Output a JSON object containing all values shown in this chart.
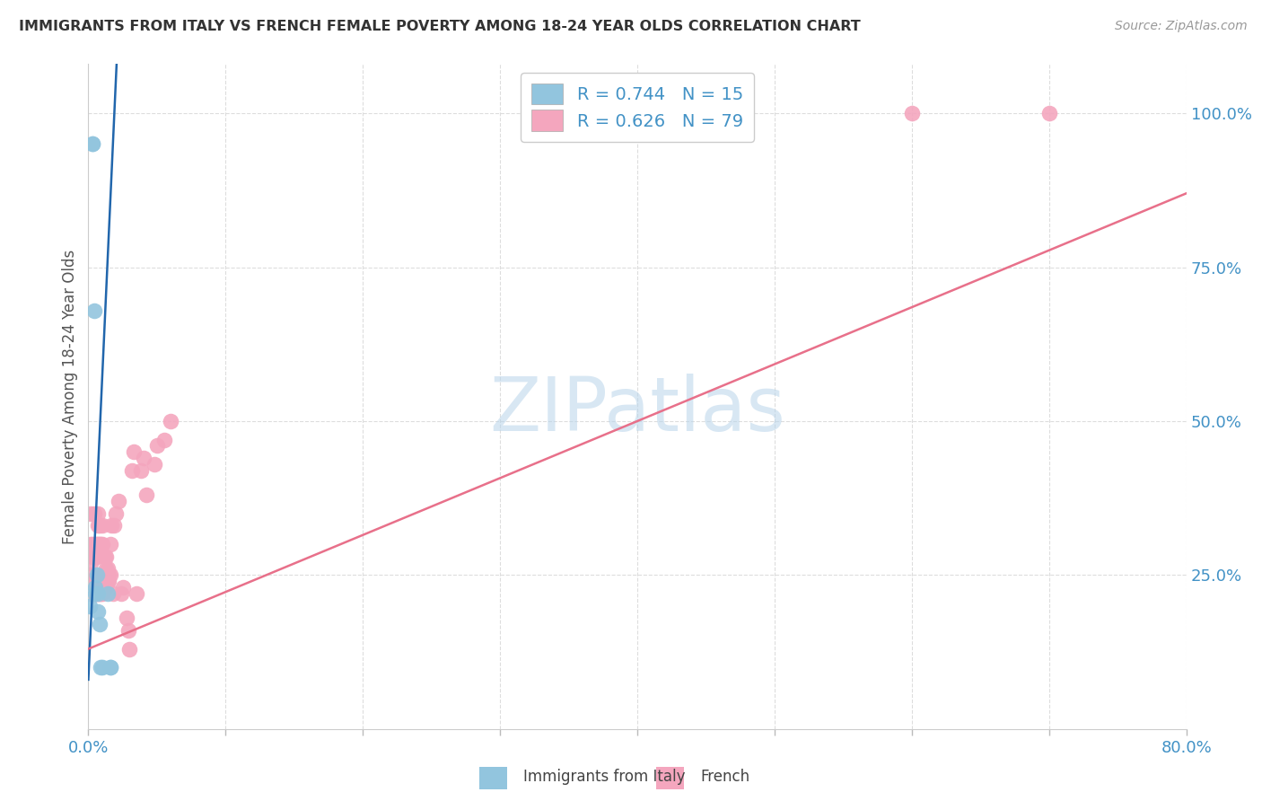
{
  "title": "IMMIGRANTS FROM ITALY VS FRENCH FEMALE POVERTY AMONG 18-24 YEAR OLDS CORRELATION CHART",
  "source": "Source: ZipAtlas.com",
  "ylabel": "Female Poverty Among 18-24 Year Olds",
  "watermark": "ZIPatlas",
  "legend_italy": "Immigrants from Italy",
  "legend_french": "French",
  "R_italy": "0.744",
  "N_italy": "15",
  "R_french": "0.626",
  "N_french": "79",
  "color_italy": "#92c5de",
  "color_french": "#f4a6be",
  "color_italy_line": "#2166ac",
  "color_french_line": "#e8708a",
  "color_axis_labels": "#4292c6",
  "color_title": "#333333",
  "color_source": "#999999",
  "color_legend_text": "#333333",
  "color_grid": "#dddddd",
  "italy_x": [
    0.001,
    0.003,
    0.003,
    0.004,
    0.005,
    0.005,
    0.006,
    0.007,
    0.007,
    0.008,
    0.009,
    0.01,
    0.014,
    0.016,
    0.016
  ],
  "italy_y": [
    0.2,
    0.95,
    0.95,
    0.68,
    0.23,
    0.22,
    0.25,
    0.22,
    0.19,
    0.17,
    0.1,
    0.1,
    0.22,
    0.1,
    0.1
  ],
  "french_x": [
    0.001,
    0.001,
    0.001,
    0.002,
    0.002,
    0.002,
    0.002,
    0.003,
    0.003,
    0.003,
    0.003,
    0.003,
    0.004,
    0.004,
    0.004,
    0.004,
    0.005,
    0.005,
    0.005,
    0.005,
    0.005,
    0.006,
    0.006,
    0.006,
    0.006,
    0.006,
    0.007,
    0.007,
    0.007,
    0.007,
    0.007,
    0.008,
    0.008,
    0.008,
    0.008,
    0.009,
    0.009,
    0.009,
    0.01,
    0.01,
    0.01,
    0.01,
    0.011,
    0.011,
    0.011,
    0.012,
    0.012,
    0.012,
    0.013,
    0.013,
    0.013,
    0.014,
    0.014,
    0.015,
    0.015,
    0.016,
    0.016,
    0.017,
    0.018,
    0.019,
    0.02,
    0.022,
    0.024,
    0.025,
    0.028,
    0.029,
    0.03,
    0.032,
    0.033,
    0.035,
    0.038,
    0.04,
    0.042,
    0.048,
    0.05,
    0.055,
    0.06,
    0.6,
    0.7
  ],
  "french_y": [
    0.25,
    0.24,
    0.23,
    0.22,
    0.27,
    0.3,
    0.35,
    0.23,
    0.22,
    0.24,
    0.28,
    0.3,
    0.23,
    0.22,
    0.28,
    0.35,
    0.22,
    0.23,
    0.24,
    0.28,
    0.3,
    0.23,
    0.22,
    0.24,
    0.28,
    0.3,
    0.22,
    0.24,
    0.3,
    0.33,
    0.35,
    0.22,
    0.24,
    0.3,
    0.33,
    0.22,
    0.25,
    0.3,
    0.22,
    0.24,
    0.3,
    0.33,
    0.23,
    0.24,
    0.25,
    0.24,
    0.25,
    0.28,
    0.23,
    0.26,
    0.28,
    0.24,
    0.26,
    0.24,
    0.25,
    0.25,
    0.3,
    0.33,
    0.22,
    0.33,
    0.35,
    0.37,
    0.22,
    0.23,
    0.18,
    0.16,
    0.13,
    0.42,
    0.45,
    0.22,
    0.42,
    0.44,
    0.38,
    0.43,
    0.46,
    0.47,
    0.5,
    1.0,
    1.0
  ],
  "xmin": 0.0,
  "xmax": 0.8,
  "ymin": 0.0,
  "ymax": 1.08,
  "italy_line_x": [
    0.0,
    0.021
  ],
  "italy_line_y": [
    0.08,
    1.1
  ],
  "french_line_x": [
    0.0,
    0.8
  ],
  "french_line_y": [
    0.13,
    0.87
  ],
  "xticks": [
    0.0,
    0.1,
    0.2,
    0.3,
    0.4,
    0.5,
    0.6,
    0.7,
    0.8
  ],
  "yticks": [
    0.25,
    0.5,
    0.75,
    1.0
  ]
}
